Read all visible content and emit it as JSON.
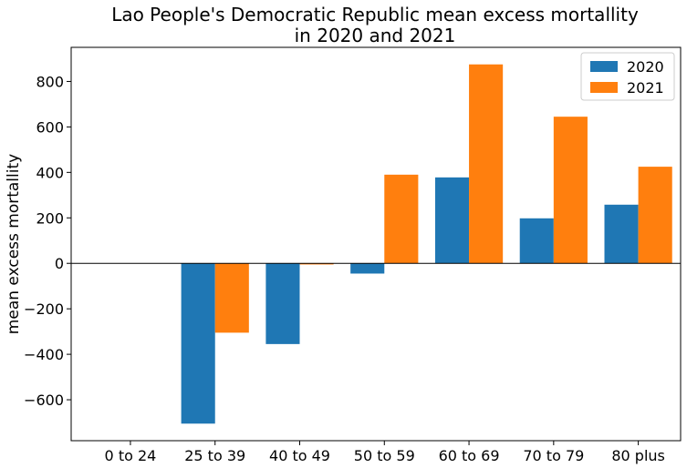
{
  "chart_data": {
    "type": "bar",
    "title": "Lao People's Democratic Republic mean excess mortallity",
    "subtitle": "in 2020 and 2021",
    "xlabel": "",
    "ylabel": "mean excess mortallity",
    "categories": [
      "0 to 24",
      "25 to 39",
      "40 to 49",
      "50 to 59",
      "60 to 69",
      "70 to 79",
      "80 plus"
    ],
    "series": [
      {
        "name": "2020",
        "color": "#1f77b4",
        "values": [
          0,
          -705,
          -355,
          -45,
          378,
          198,
          258
        ]
      },
      {
        "name": "2021",
        "color": "#ff7f0e",
        "values": [
          0,
          -305,
          -5,
          390,
          875,
          645,
          425
        ]
      }
    ],
    "ylim": [
      -780,
      950
    ],
    "yticks": [
      -600,
      -400,
      -200,
      0,
      200,
      400,
      600,
      800
    ],
    "ytick_labels": [
      "−600",
      "−400",
      "−200",
      "0",
      "200",
      "400",
      "600",
      "800"
    ],
    "grid": false,
    "legend_position": "top-right"
  }
}
